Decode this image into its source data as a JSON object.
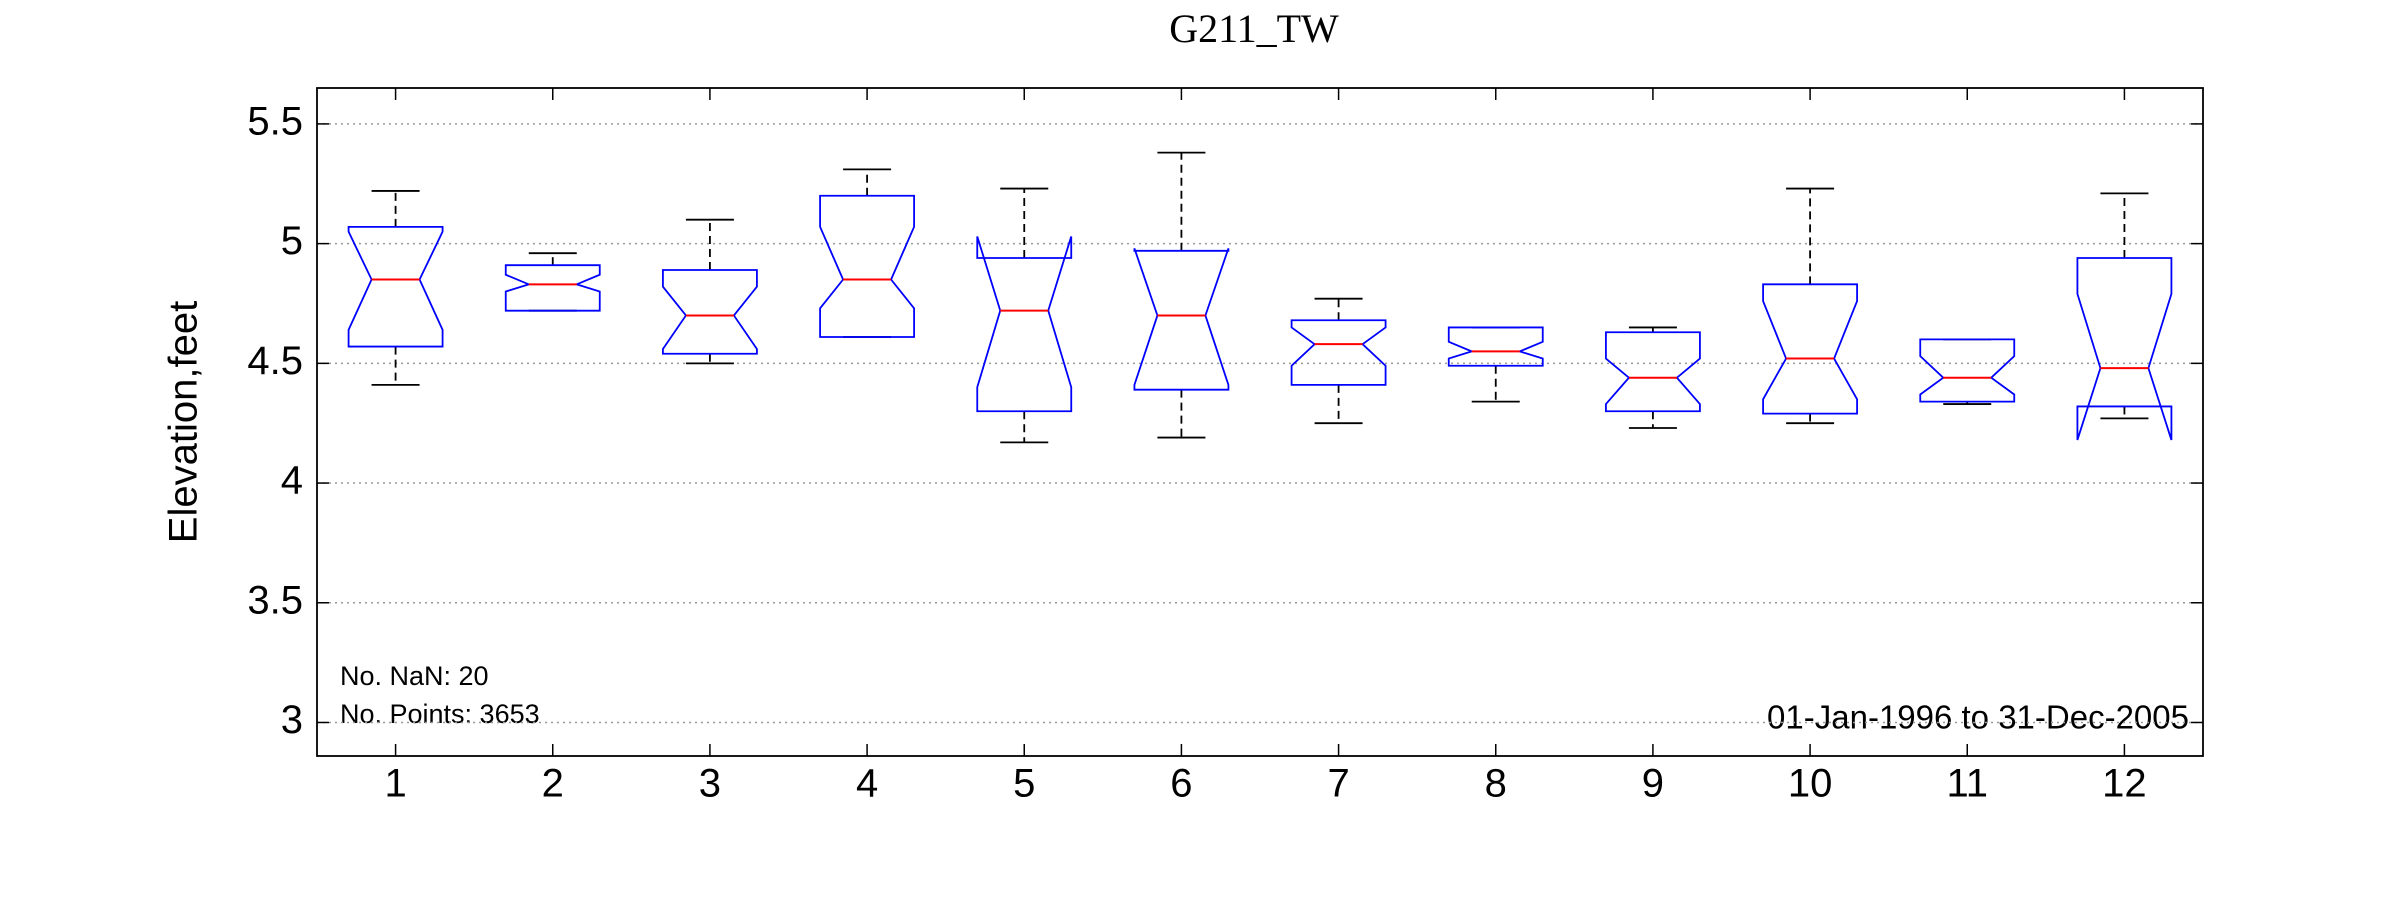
{
  "chart_data": {
    "type": "box",
    "title": "G211_TW",
    "y_label": "Elevation,feet",
    "categories": [
      "1",
      "2",
      "3",
      "4",
      "5",
      "6",
      "7",
      "8",
      "9",
      "10",
      "11",
      "12"
    ],
    "whisker_low": [
      4.41,
      4.72,
      4.5,
      4.61,
      4.17,
      4.19,
      4.25,
      4.34,
      4.23,
      4.25,
      4.33,
      4.27
    ],
    "q1": [
      4.57,
      4.72,
      4.54,
      4.61,
      4.3,
      4.39,
      4.41,
      4.49,
      4.3,
      4.29,
      4.34,
      4.32
    ],
    "notch_low": [
      4.64,
      4.8,
      4.56,
      4.73,
      4.4,
      4.41,
      4.49,
      4.52,
      4.33,
      4.35,
      4.37,
      4.18
    ],
    "median": [
      4.85,
      4.83,
      4.7,
      4.85,
      4.72,
      4.7,
      4.58,
      4.55,
      4.44,
      4.52,
      4.44,
      4.48
    ],
    "notch_high": [
      5.05,
      4.87,
      4.82,
      5.07,
      5.03,
      4.98,
      4.65,
      4.59,
      4.52,
      4.76,
      4.53,
      4.79
    ],
    "q3": [
      5.07,
      4.91,
      4.89,
      5.2,
      4.94,
      4.97,
      4.68,
      4.65,
      4.63,
      4.83,
      4.6,
      4.94
    ],
    "whisker_high": [
      5.22,
      4.96,
      5.1,
      5.31,
      5.23,
      5.38,
      4.77,
      4.65,
      4.65,
      5.23,
      4.6,
      5.21
    ],
    "box_color": "#0000ff",
    "median_color": "#ff0000",
    "whisker_color": "#000000",
    "ylim": [
      2.86,
      5.65
    ],
    "yticks": [
      3,
      3.5,
      4,
      4.5,
      5,
      5.5
    ],
    "grid": true,
    "annotations": [
      "No. NaN: 20",
      "No. Points: 3653",
      "01-Jan-1996 to 31-Dec-2005"
    ]
  }
}
